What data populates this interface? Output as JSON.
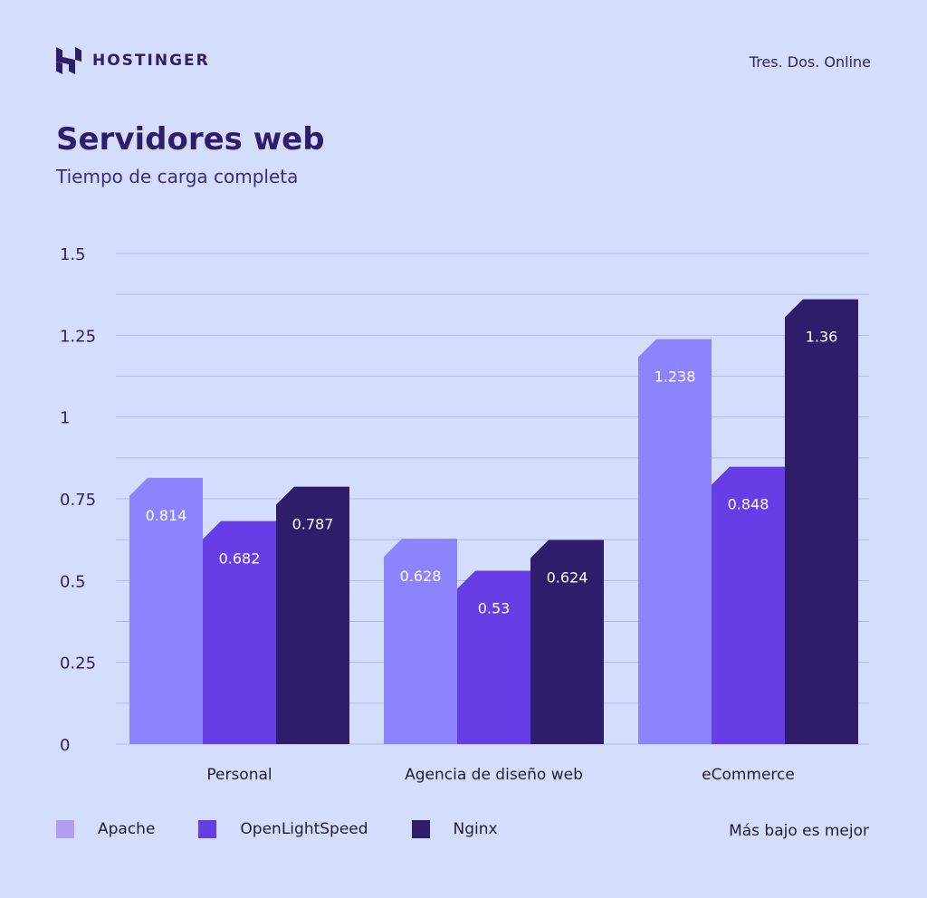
{
  "brand": {
    "name": "HOSTINGER",
    "logo_icon": "hostinger-h-logo"
  },
  "source": "Tres. Dos. Online",
  "note": "Más bajo es mejor",
  "colors": {
    "background": "#d5ddfd",
    "grid": "#b3b6f5",
    "Apache": "#8c84ff",
    "Apache_legend": "#b39ef3",
    "OpenLightSpeed": "#673de6",
    "Nginx": "#2f1c6a",
    "text": "#2f1c6a"
  },
  "chart_data": {
    "type": "bar",
    "title": "Servidores web",
    "subtitle": "Tiempo de carga completa",
    "xlabel": "",
    "ylabel": "",
    "ylim": [
      0,
      1.5
    ],
    "yticks": [
      "0",
      "0.25",
      "0.5",
      "0.75",
      "1",
      "1.25",
      "1.5"
    ],
    "grid": true,
    "legend_placement": "bottom-left",
    "categories": [
      "Personal",
      "Agencia de diseño web",
      "eCommerce"
    ],
    "series": [
      {
        "name": "Apache",
        "values": [
          0.814,
          0.628,
          1.238
        ],
        "labels": [
          "0.814",
          "0.628",
          "1.238"
        ]
      },
      {
        "name": "OpenLightSpeed",
        "values": [
          0.682,
          0.53,
          0.848
        ],
        "labels": [
          "0.682",
          "0.53",
          "0.848"
        ]
      },
      {
        "name": "Nginx",
        "values": [
          0.787,
          0.624,
          1.36
        ],
        "labels": [
          "0.787",
          "0.624",
          "1.36"
        ]
      }
    ]
  }
}
